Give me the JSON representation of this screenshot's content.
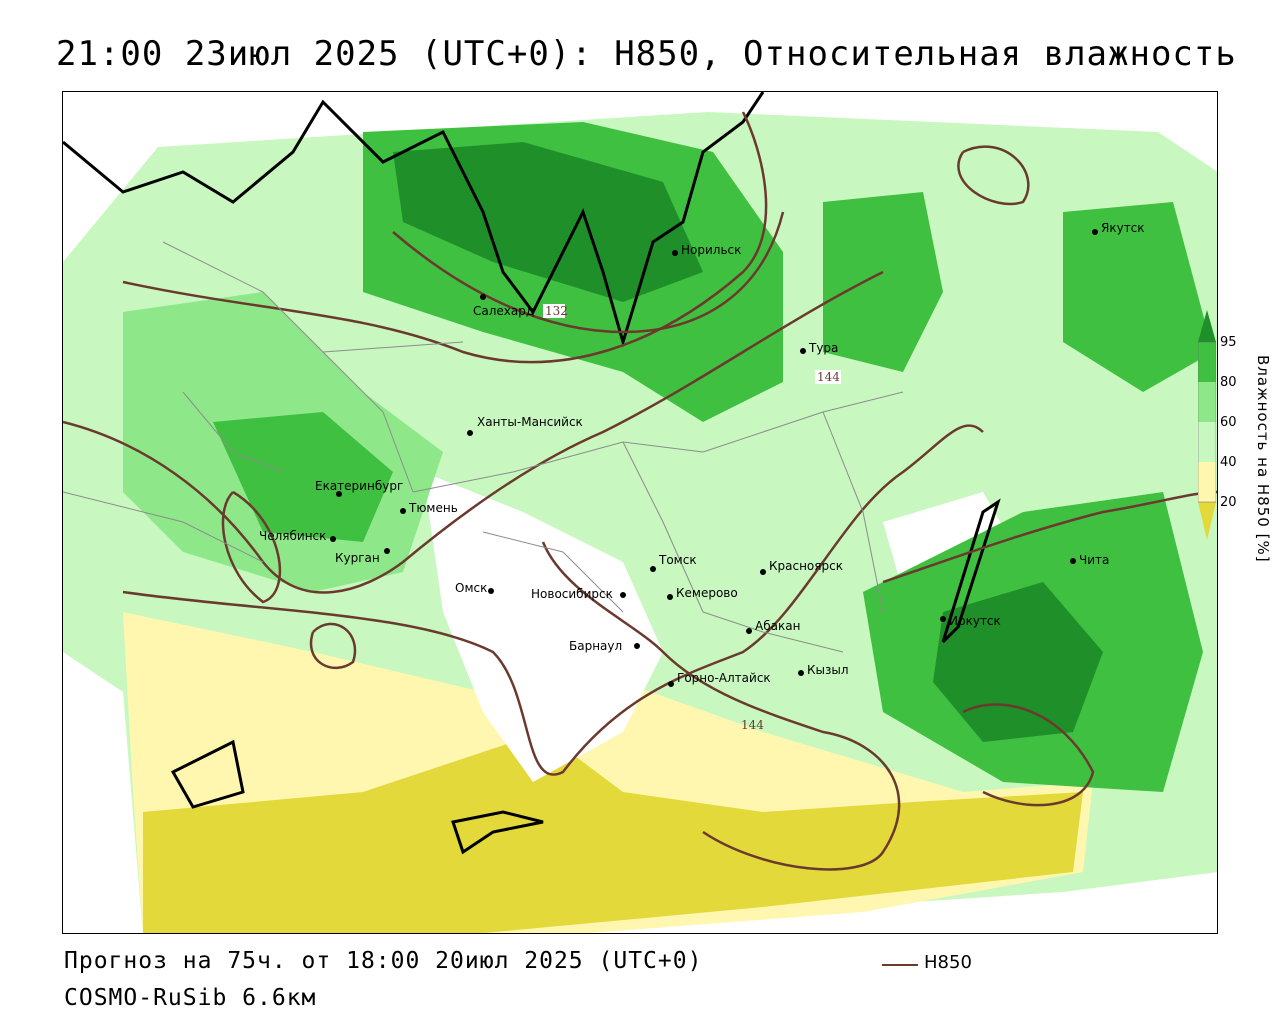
{
  "title": "21:00 23июл 2025 (UTC+0): H850, Относительная влажность",
  "footer": {
    "forecast": "Прогноз на 75ч. от 18:00 20июл 2025 (UTC+0)",
    "model": "COSMO-RuSib 6.6км",
    "legend_label": "H850"
  },
  "colorbar": {
    "title": "Влажность на H850 [%]",
    "ticks": [
      "95",
      "80",
      "60",
      "40",
      "20"
    ],
    "colors": [
      "#1f8f2a",
      "#3fc040",
      "#8ee88a",
      "#c8f7c0",
      "#ffffff",
      "#fff7b0",
      "#f2ec80",
      "#e3d93a"
    ]
  },
  "contour_labels": [
    "132",
    "144",
    "144"
  ],
  "cities": [
    {
      "name": "Норильск"
    },
    {
      "name": "Якутск"
    },
    {
      "name": "Салехард"
    },
    {
      "name": "Тура"
    },
    {
      "name": "Ханты-Мансийск"
    },
    {
      "name": "Екатеринбург"
    },
    {
      "name": "Тюмень"
    },
    {
      "name": "Челябинск"
    },
    {
      "name": "Курган"
    },
    {
      "name": "Омск"
    },
    {
      "name": "Новосибирск"
    },
    {
      "name": "Томск"
    },
    {
      "name": "Кемерово"
    },
    {
      "name": "Красноярск"
    },
    {
      "name": "Абакан"
    },
    {
      "name": "Барнаул"
    },
    {
      "name": "Горно-Алтайск"
    },
    {
      "name": "Кызыл"
    },
    {
      "name": "Иркутск"
    },
    {
      "name": "Чита"
    }
  ]
}
